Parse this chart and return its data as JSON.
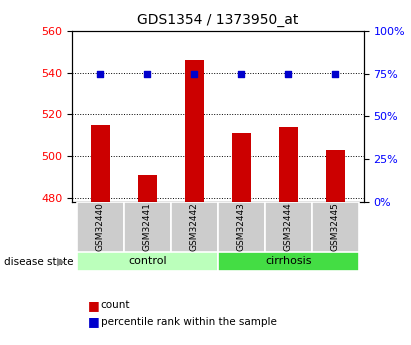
{
  "title": "GDS1354 / 1373950_at",
  "samples": [
    "GSM32440",
    "GSM32441",
    "GSM32442",
    "GSM32443",
    "GSM32444",
    "GSM32445"
  ],
  "counts": [
    515,
    491,
    546,
    511,
    514,
    503
  ],
  "percentile_ranks": [
    75,
    75,
    75,
    75,
    75,
    75
  ],
  "ylim_left": [
    478,
    560
  ],
  "ylim_right": [
    0,
    100
  ],
  "yticks_left": [
    480,
    500,
    520,
    540,
    560
  ],
  "yticks_right": [
    0,
    25,
    50,
    75,
    100
  ],
  "bar_bottom": 478,
  "bar_color": "#cc0000",
  "dot_color": "#0000cc",
  "groups": [
    {
      "label": "control",
      "indices": [
        0,
        1,
        2
      ],
      "color": "#bbffbb"
    },
    {
      "label": "cirrhosis",
      "indices": [
        3,
        4,
        5
      ],
      "color": "#44dd44"
    }
  ],
  "group_label": "disease state",
  "grid_color": "black",
  "title_fontsize": 10,
  "tick_label_color_left": "red",
  "tick_label_color_right": "blue",
  "sample_box_color": "#cccccc",
  "bar_width": 0.4
}
